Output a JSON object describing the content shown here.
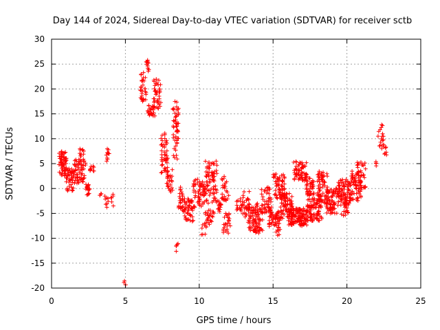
{
  "chart_data": {
    "type": "scatter",
    "title": "Day 144 of 2024, Sidereal Day-to-day VTEC variation (SDTVAR) for receiver sctb",
    "xlabel": "GPS time / hours",
    "ylabel": "SDTVAR / TECUs",
    "xlim": [
      0,
      25
    ],
    "ylim": [
      -20,
      30
    ],
    "xticks": [
      "0",
      "5",
      "10",
      "15",
      "20",
      "25"
    ],
    "yticks": [
      "-20",
      "-15",
      "-10",
      "-5",
      "0",
      "5",
      "10",
      "15",
      "20",
      "25",
      "30"
    ],
    "grid": true,
    "marker": "+",
    "color": "#ff0000",
    "clusters": [
      {
        "x0": 0.5,
        "x1": 1.0,
        "y0": 2.5,
        "y1": 7.5,
        "n": 60
      },
      {
        "x0": 1.0,
        "x1": 1.5,
        "y0": -0.5,
        "y1": 4.0,
        "n": 40
      },
      {
        "x0": 1.5,
        "x1": 2.3,
        "y0": 1.0,
        "y1": 6.0,
        "n": 60
      },
      {
        "x0": 1.9,
        "x1": 2.2,
        "y0": 6.5,
        "y1": 8.0,
        "n": 10
      },
      {
        "x0": 2.3,
        "x1": 2.6,
        "y0": -1.5,
        "y1": 1.0,
        "n": 20
      },
      {
        "x0": 2.6,
        "x1": 2.9,
        "y0": 3.5,
        "y1": 4.5,
        "n": 10
      },
      {
        "x0": 3.2,
        "x1": 3.4,
        "y0": -1.6,
        "y1": -1.0,
        "n": 4
      },
      {
        "x0": 3.6,
        "x1": 3.9,
        "y0": -3.8,
        "y1": -1.5,
        "n": 8
      },
      {
        "x0": 3.7,
        "x1": 3.9,
        "y0": 5.0,
        "y1": 8.0,
        "n": 10
      },
      {
        "x0": 4.0,
        "x1": 4.2,
        "y0": -3.6,
        "y1": -1.0,
        "n": 6
      },
      {
        "x0": 4.9,
        "x1": 5.1,
        "y0": -19.5,
        "y1": -18.3,
        "n": 3
      },
      {
        "x0": 6.0,
        "x1": 6.4,
        "y0": 17.5,
        "y1": 23.5,
        "n": 30
      },
      {
        "x0": 6.4,
        "x1": 6.6,
        "y0": 23.0,
        "y1": 26.0,
        "n": 12
      },
      {
        "x0": 6.5,
        "x1": 7.0,
        "y0": 14.5,
        "y1": 17.0,
        "n": 25
      },
      {
        "x0": 6.9,
        "x1": 7.4,
        "y0": 16.0,
        "y1": 22.0,
        "n": 40
      },
      {
        "x0": 7.4,
        "x1": 7.9,
        "y0": 3.0,
        "y1": 11.5,
        "n": 45
      },
      {
        "x0": 7.8,
        "x1": 8.2,
        "y0": -1.0,
        "y1": 4.0,
        "n": 25
      },
      {
        "x0": 8.2,
        "x1": 8.6,
        "y0": 5.0,
        "y1": 17.5,
        "n": 50
      },
      {
        "x0": 8.4,
        "x1": 8.6,
        "y0": -13.0,
        "y1": -10.8,
        "n": 5
      },
      {
        "x0": 8.6,
        "x1": 9.0,
        "y0": -5.0,
        "y1": 0.5,
        "n": 30
      },
      {
        "x0": 9.0,
        "x1": 9.6,
        "y0": -7.0,
        "y1": -2.0,
        "n": 45
      },
      {
        "x0": 9.6,
        "x1": 10.3,
        "y0": -4.0,
        "y1": 2.0,
        "n": 50
      },
      {
        "x0": 10.1,
        "x1": 10.5,
        "y0": -9.5,
        "y1": -7.0,
        "n": 8
      },
      {
        "x0": 10.3,
        "x1": 11.2,
        "y0": -3.0,
        "y1": 5.5,
        "n": 80
      },
      {
        "x0": 10.4,
        "x1": 11.0,
        "y0": -8.0,
        "y1": -4.0,
        "n": 25
      },
      {
        "x0": 11.2,
        "x1": 11.5,
        "y0": -5.0,
        "y1": -2.0,
        "n": 15
      },
      {
        "x0": 11.5,
        "x1": 12.0,
        "y0": -2.5,
        "y1": 2.5,
        "n": 25
      },
      {
        "x0": 11.6,
        "x1": 12.1,
        "y0": -9.0,
        "y1": -5.0,
        "n": 25
      },
      {
        "x0": 12.5,
        "x1": 12.9,
        "y0": -4.5,
        "y1": -2.0,
        "n": 15
      },
      {
        "x0": 12.9,
        "x1": 13.4,
        "y0": -6.0,
        "y1": 0.0,
        "n": 30
      },
      {
        "x0": 13.3,
        "x1": 14.3,
        "y0": -9.0,
        "y1": -3.0,
        "n": 90
      },
      {
        "x0": 14.2,
        "x1": 14.9,
        "y0": -5.0,
        "y1": 0.5,
        "n": 45
      },
      {
        "x0": 14.7,
        "x1": 15.5,
        "y0": -8.0,
        "y1": -4.5,
        "n": 50
      },
      {
        "x0": 15.0,
        "x1": 15.8,
        "y0": -2.0,
        "y1": 3.0,
        "n": 60
      },
      {
        "x0": 15.2,
        "x1": 15.5,
        "y0": -9.5,
        "y1": -8.0,
        "n": 6
      },
      {
        "x0": 15.5,
        "x1": 16.3,
        "y0": -6.0,
        "y1": -1.0,
        "n": 70
      },
      {
        "x0": 16.0,
        "x1": 17.3,
        "y0": -7.5,
        "y1": -4.0,
        "n": 120
      },
      {
        "x0": 16.4,
        "x1": 17.3,
        "y0": 1.5,
        "y1": 5.5,
        "n": 60
      },
      {
        "x0": 17.2,
        "x1": 17.8,
        "y0": -1.5,
        "y1": 2.5,
        "n": 40
      },
      {
        "x0": 17.3,
        "x1": 18.3,
        "y0": -6.5,
        "y1": -2.0,
        "n": 90
      },
      {
        "x0": 18.0,
        "x1": 18.7,
        "y0": -3.0,
        "y1": 3.5,
        "n": 60
      },
      {
        "x0": 18.6,
        "x1": 19.4,
        "y0": -5.0,
        "y1": 0.0,
        "n": 70
      },
      {
        "x0": 19.4,
        "x1": 20.3,
        "y0": -3.5,
        "y1": 2.0,
        "n": 90
      },
      {
        "x0": 19.6,
        "x1": 20.1,
        "y0": -5.5,
        "y1": -3.0,
        "n": 15
      },
      {
        "x0": 20.3,
        "x1": 21.0,
        "y0": -2.5,
        "y1": 3.5,
        "n": 60
      },
      {
        "x0": 20.7,
        "x1": 21.3,
        "y0": 0.0,
        "y1": 5.5,
        "n": 30
      },
      {
        "x0": 21.9,
        "x1": 22.0,
        "y0": 4.5,
        "y1": 5.5,
        "n": 4
      },
      {
        "x0": 22.1,
        "x1": 22.5,
        "y0": 8.0,
        "y1": 13.5,
        "n": 20
      },
      {
        "x0": 22.5,
        "x1": 22.7,
        "y0": 6.5,
        "y1": 9.0,
        "n": 6
      }
    ]
  }
}
